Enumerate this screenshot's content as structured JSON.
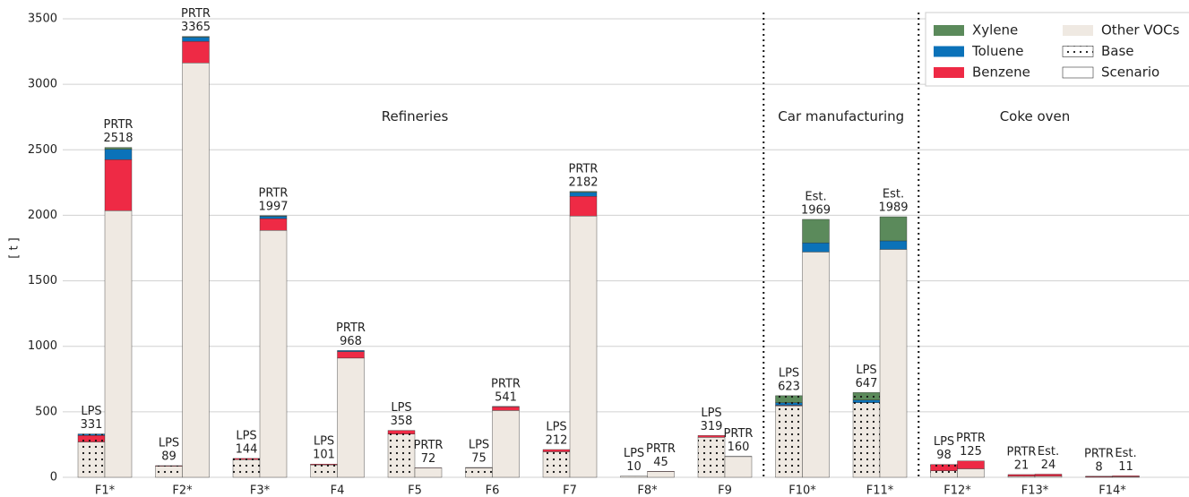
{
  "chart_data": {
    "type": "grouped-stacked-bar",
    "y_label": "[ t ]",
    "categories": [
      "F1*",
      "F2*",
      "F3*",
      "F4",
      "F5",
      "F6",
      "F7",
      "F8*",
      "F9",
      "F10*",
      "F11*",
      "F12*",
      "F13*",
      "F14*"
    ],
    "sections": [
      {
        "label": "Refineries",
        "count": 9
      },
      {
        "label": "Car manufacturing",
        "count": 2
      },
      {
        "label": "Coke oven",
        "count": 3
      }
    ],
    "series": [
      {
        "name": "Other VOCs",
        "color": "#efe9e2",
        "base": [
          270,
          85,
          135,
          95,
          330,
          72,
          195,
          10,
          305,
          545,
          570,
          50,
          8,
          3
        ],
        "scenario": [
          2035,
          3163,
          1885,
          910,
          70,
          510,
          1995,
          44,
          158,
          1720,
          1740,
          65,
          9,
          4
        ]
      },
      {
        "name": "Benzene",
        "color": "#ee2a45",
        "base": [
          50,
          4,
          9,
          6,
          28,
          3,
          17,
          0,
          14,
          5,
          0,
          48,
          13,
          5
        ],
        "scenario": [
          390,
          165,
          90,
          50,
          2,
          28,
          150,
          1,
          2,
          0,
          0,
          60,
          15,
          7
        ]
      },
      {
        "name": "Toluene",
        "color": "#0b72b9",
        "base": [
          11,
          0,
          0,
          0,
          0,
          0,
          0,
          0,
          0,
          20,
          20,
          0,
          0,
          0
        ],
        "scenario": [
          80,
          32,
          18,
          8,
          0,
          3,
          30,
          0,
          0,
          70,
          65,
          0,
          0,
          0
        ]
      },
      {
        "name": "Xylene",
        "color": "#5b8a5b",
        "base": [
          0,
          0,
          0,
          0,
          0,
          0,
          0,
          0,
          0,
          53,
          57,
          0,
          0,
          0
        ],
        "scenario": [
          13,
          5,
          4,
          0,
          0,
          0,
          7,
          0,
          0,
          179,
          184,
          0,
          0,
          0
        ]
      }
    ],
    "patterns": [
      {
        "name": "Base"
      },
      {
        "name": "Scenario"
      }
    ],
    "base_labels": [
      {
        "source": "LPS",
        "total": 331
      },
      {
        "source": "LPS",
        "total": 89
      },
      {
        "source": "LPS",
        "total": 144
      },
      {
        "source": "LPS",
        "total": 101
      },
      {
        "source": "LPS",
        "total": 358
      },
      {
        "source": "LPS",
        "total": 75
      },
      {
        "source": "LPS",
        "total": 212
      },
      {
        "source": "LPS",
        "total": 10
      },
      {
        "source": "LPS",
        "total": 319
      },
      {
        "source": "LPS",
        "total": 623
      },
      {
        "source": "LPS",
        "total": 647
      },
      {
        "source": "LPS",
        "total": 98
      },
      {
        "source": "PRTR",
        "total": 21
      },
      {
        "source": "PRTR",
        "total": 8
      }
    ],
    "scenario_labels": [
      {
        "source": "PRTR",
        "total": 2518
      },
      {
        "source": "PRTR",
        "total": 3365
      },
      {
        "source": "PRTR",
        "total": 1997
      },
      {
        "source": "PRTR",
        "total": 968
      },
      {
        "source": "PRTR",
        "total": 72
      },
      {
        "source": "PRTR",
        "total": 541
      },
      {
        "source": "PRTR",
        "total": 2182
      },
      {
        "source": "PRTR",
        "total": 45
      },
      {
        "source": "PRTR",
        "total": 160
      },
      {
        "source": "Est.",
        "total": 1969
      },
      {
        "source": "Est.",
        "total": 1989
      },
      {
        "source": "PRTR",
        "total": 125
      },
      {
        "source": "Est.",
        "total": 24
      },
      {
        "source": "Est.",
        "total": 11
      }
    ],
    "ylim": [
      0,
      3500
    ],
    "yticks": [
      0,
      500,
      1000,
      1500,
      2000,
      2500,
      3000,
      3500
    ],
    "grid": true
  }
}
